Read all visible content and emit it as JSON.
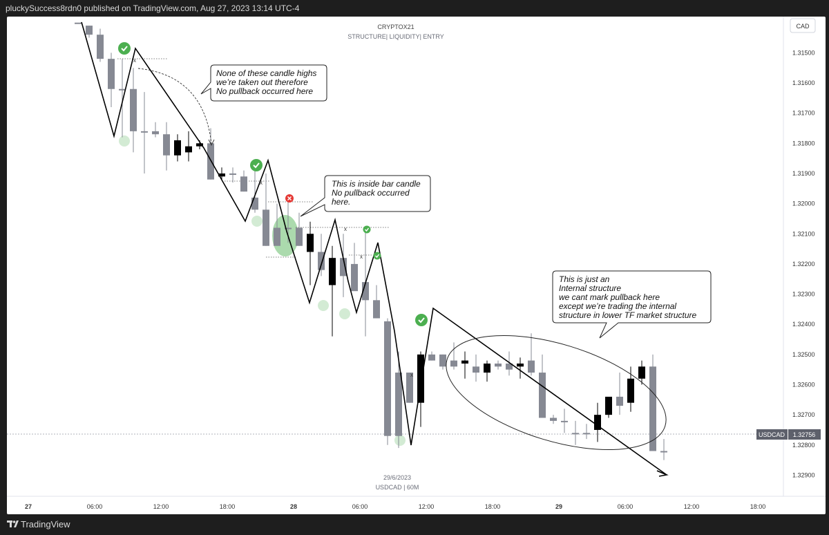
{
  "header": {
    "publish_line": "pluckySuccess8rdn0 published on TradingView.com, Aug 27, 2023 13:14 UTC-4"
  },
  "footer": {
    "brand": "TradingView"
  },
  "colors": {
    "bull": "#000000",
    "bear": "#868993",
    "background": "#ffffff",
    "price_tag": "#5d606b"
  },
  "chart_data": {
    "type": "candlestick",
    "title": "CRYPTOX21",
    "subtitle": "STRUCTURE| LIQUIDITY| ENTRY",
    "currency": "CAD",
    "symbol_label": "USDCAD",
    "last_price": "1.32756",
    "date_caption": "29/6/2023",
    "symbol_caption": "USDCAD | 60M",
    "y_axis_inverted": true,
    "ylim": [
      1.3138,
      1.3297
    ],
    "y_ticks": [
      "1.31500",
      "1.31600",
      "1.31700",
      "1.31800",
      "1.31900",
      "1.32000",
      "1.32100",
      "1.32200",
      "1.32300",
      "1.32400",
      "1.32500",
      "1.32600",
      "1.32700",
      "1.32800",
      "1.32900"
    ],
    "x_ticks": [
      {
        "label": "27",
        "slot": -4.5,
        "bold": true
      },
      {
        "label": "06:00",
        "slot": 1.5
      },
      {
        "label": "12:00",
        "slot": 7.5
      },
      {
        "label": "18:00",
        "slot": 13.5
      },
      {
        "label": "28",
        "slot": 19.5,
        "bold": true
      },
      {
        "label": "06:00",
        "slot": 25.5
      },
      {
        "label": "12:00",
        "slot": 31.5
      },
      {
        "label": "18:00",
        "slot": 37.5
      },
      {
        "label": "29",
        "slot": 43.5,
        "bold": true
      },
      {
        "label": "06:00",
        "slot": 49.5
      },
      {
        "label": "12:00",
        "slot": 55.5
      },
      {
        "label": "18:00",
        "slot": 61.5
      }
    ],
    "candles": [
      [
        1.314,
        1.314,
        1.314,
        1.314
      ],
      [
        1.3141,
        1.3141,
        1.3145,
        1.3144
      ],
      [
        1.3144,
        1.3142,
        1.3153,
        1.3152
      ],
      [
        1.3152,
        1.315,
        1.3168,
        1.3162
      ],
      [
        1.3162,
        1.3152,
        1.3178,
        1.3162
      ],
      [
        1.3162,
        1.3155,
        1.3183,
        1.3176
      ],
      [
        1.3176,
        1.3163,
        1.319,
        1.3176
      ],
      [
        1.3176,
        1.3173,
        1.3178,
        1.3177
      ],
      [
        1.3177,
        1.3173,
        1.3189,
        1.3184
      ],
      [
        1.3184,
        1.3177,
        1.3186,
        1.3179
      ],
      [
        1.3183,
        1.3176,
        1.3186,
        1.3181
      ],
      [
        1.3181,
        1.3179,
        1.3182,
        1.318
      ],
      [
        1.318,
        1.3175,
        1.3192,
        1.3192
      ],
      [
        1.3191,
        1.3188,
        1.3192,
        1.319
      ],
      [
        1.319,
        1.3188,
        1.3193,
        1.319
      ],
      [
        1.3191,
        1.3189,
        1.3196,
        1.3196
      ],
      [
        1.3198,
        1.3188,
        1.3203,
        1.3202
      ],
      [
        1.3202,
        1.319,
        1.3214,
        1.3214
      ],
      [
        1.3208,
        1.32,
        1.3212,
        1.3214
      ],
      [
        1.3208,
        1.3199,
        1.3213,
        1.3208
      ],
      [
        1.3208,
        1.3203,
        1.3214,
        1.3214
      ],
      [
        1.3216,
        1.3206,
        1.3227,
        1.321
      ],
      [
        1.3216,
        1.321,
        1.3224,
        1.3222
      ],
      [
        1.3227,
        1.3214,
        1.3244,
        1.3218
      ],
      [
        1.3218,
        1.321,
        1.3231,
        1.3224
      ],
      [
        1.322,
        1.3213,
        1.3228,
        1.3229
      ],
      [
        1.3226,
        1.3209,
        1.3244,
        1.3232
      ],
      [
        1.3232,
        1.3227,
        1.3238,
        1.3238
      ],
      [
        1.3239,
        1.3238,
        1.328,
        1.3277
      ],
      [
        1.3256,
        1.3249,
        1.3281,
        1.3277
      ],
      [
        1.3256,
        1.3256,
        1.3266,
        1.3266
      ],
      [
        1.3266,
        1.3249,
        1.3274,
        1.325
      ],
      [
        1.325,
        1.3249,
        1.3252,
        1.3252
      ],
      [
        1.325,
        1.325,
        1.3255,
        1.3254
      ],
      [
        1.3252,
        1.3246,
        1.3255,
        1.3254
      ],
      [
        1.3253,
        1.3249,
        1.3258,
        1.3252
      ],
      [
        1.3254,
        1.325,
        1.3259,
        1.3256
      ],
      [
        1.3256,
        1.3252,
        1.3259,
        1.3253
      ],
      [
        1.3253,
        1.3252,
        1.3255,
        1.3254
      ],
      [
        1.3253,
        1.3249,
        1.3257,
        1.3255
      ],
      [
        1.3254,
        1.3251,
        1.3258,
        1.3253
      ],
      [
        1.3252,
        1.3243,
        1.3257,
        1.3256
      ],
      [
        1.3256,
        1.325,
        1.326,
        1.3271
      ],
      [
        1.3271,
        1.327,
        1.3273,
        1.3272
      ],
      [
        1.3272,
        1.3268,
        1.3276,
        1.3272
      ],
      [
        1.3276,
        1.3272,
        1.328,
        1.3276
      ],
      [
        1.3276,
        1.3273,
        1.3278,
        1.3276
      ],
      [
        1.3275,
        1.3266,
        1.3279,
        1.327
      ],
      [
        1.327,
        1.3264,
        1.3271,
        1.3264
      ],
      [
        1.3264,
        1.3256,
        1.327,
        1.3267
      ],
      [
        1.3266,
        1.3254,
        1.3269,
        1.3258
      ],
      [
        1.3258,
        1.3252,
        1.326,
        1.3254
      ],
      [
        1.3254,
        1.325,
        1.326,
        1.3282
      ],
      [
        1.3282,
        1.3278,
        1.3285,
        1.3282
      ]
    ],
    "annotations": [
      {
        "id": "note-1",
        "lines": [
          "None of these candle highs",
          "we’re taken out therefore",
          "No pullback occurred here"
        ]
      },
      {
        "id": "note-2",
        "lines": [
          "This is inside bar candle",
          "No pullback occurred",
          "here."
        ]
      },
      {
        "id": "note-3",
        "lines": [
          "This is just an",
          "Internal structure",
          "we cant mark pullback here",
          "except we’re trading the internal",
          "structure in lower TF market structure"
        ]
      }
    ],
    "marker_text": "x"
  }
}
